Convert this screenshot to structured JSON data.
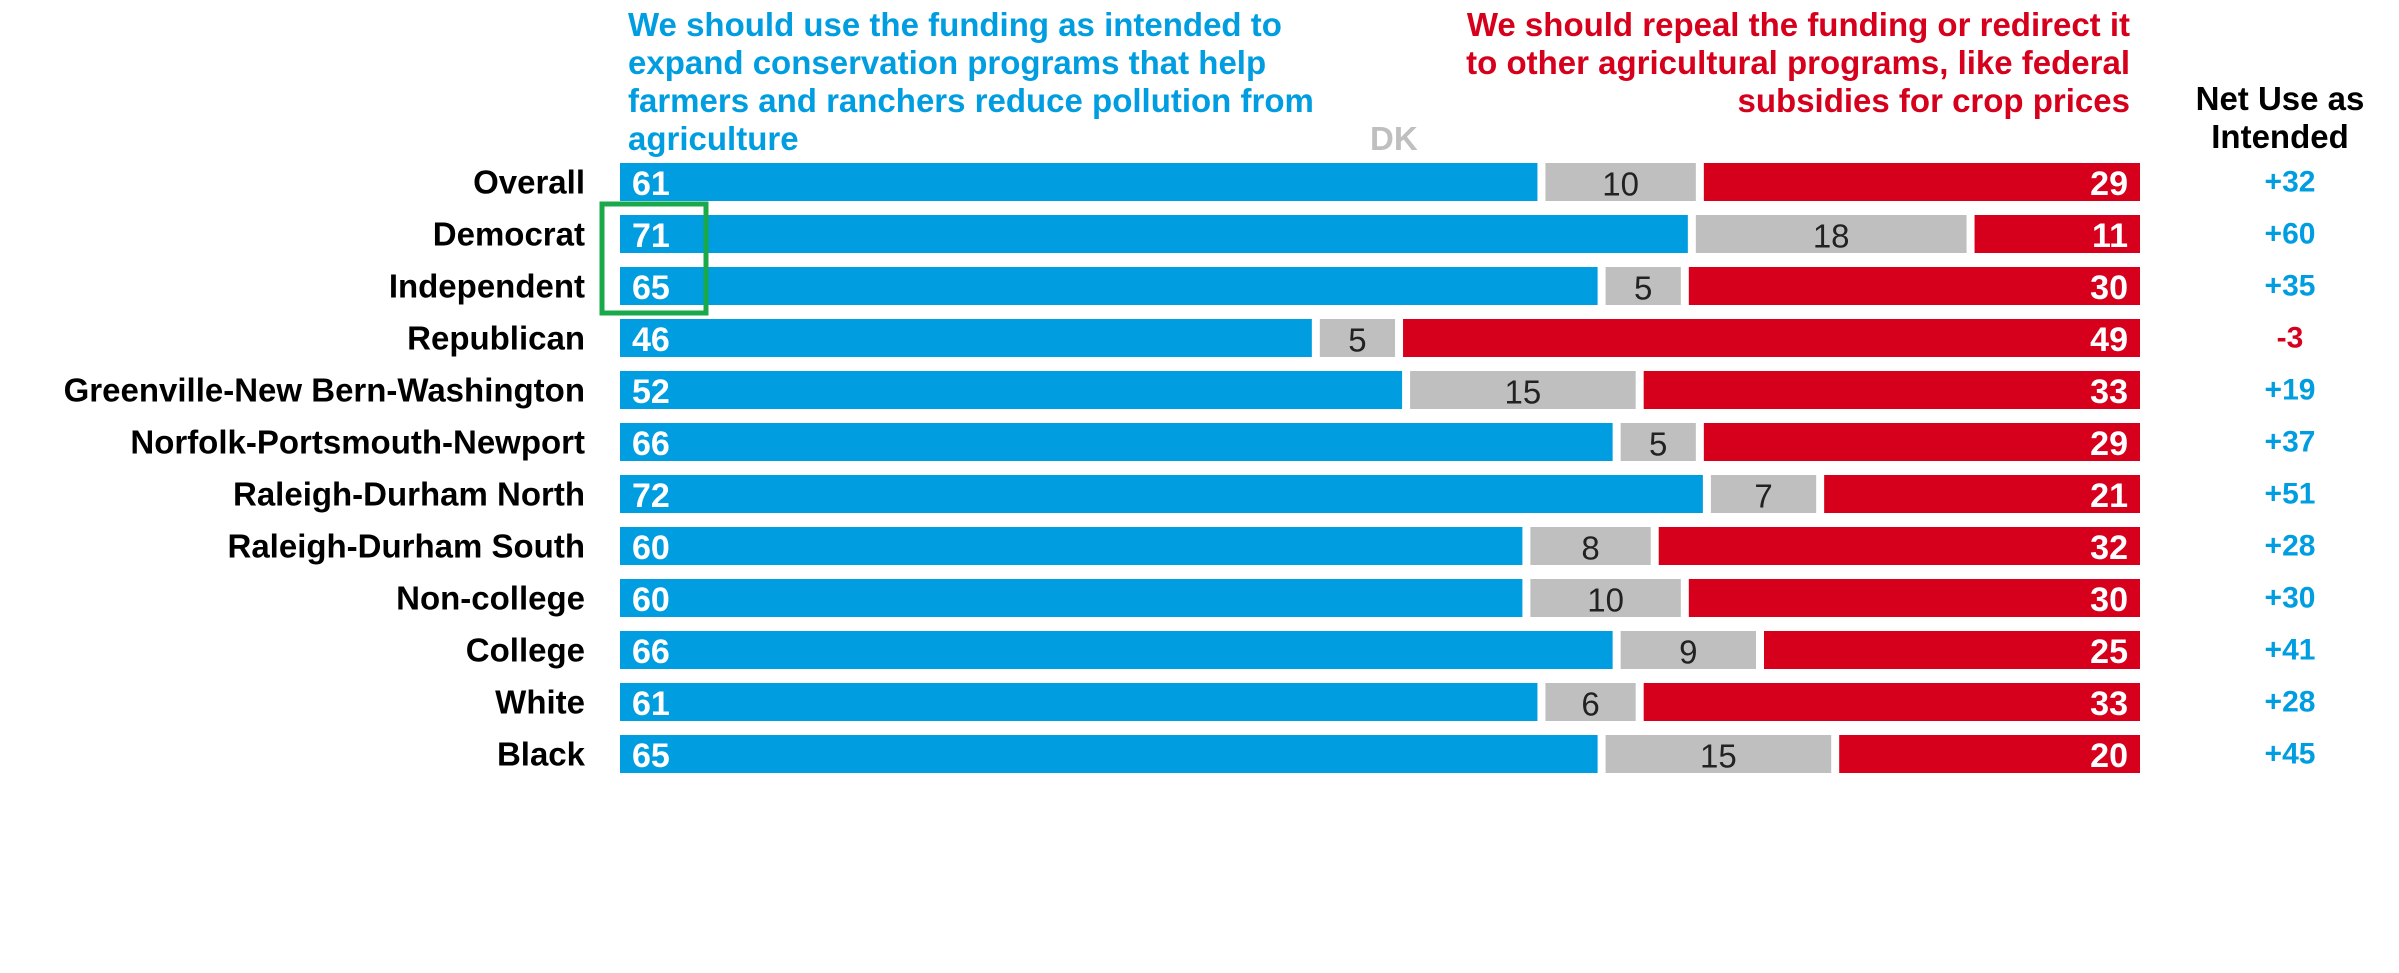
{
  "legend": {
    "use_label": "We should use the funding as intended to expand conservation programs that help farmers and ranchers reduce pollution from agriculture",
    "dk_label": "DK",
    "repeal_label": "We should repeal the funding or redirect it to other agricultural programs, like federal subsidies for crop prices",
    "net_label": "Net Use as Intended"
  },
  "colors": {
    "use": "#009ee0",
    "dk": "#bfbfbf",
    "repeal": "#d6001c",
    "highlight": "#19a84a"
  },
  "chart_data": {
    "type": "bar",
    "stacked": true,
    "orientation": "horizontal",
    "categories": [
      "Overall",
      "Democrat",
      "Independent",
      "Republican",
      "Greenville-New Bern-Washington",
      "Norfolk-Portsmouth-Newport",
      "Raleigh-Durham North",
      "Raleigh-Durham South",
      "Non-college",
      "College",
      "White",
      "Black"
    ],
    "groups": [
      [
        "Overall"
      ],
      [
        "Democrat",
        "Independent",
        "Republican"
      ],
      [
        "Greenville-New Bern-Washington",
        "Norfolk-Portsmouth-Newport",
        "Raleigh-Durham North",
        "Raleigh-Durham South"
      ],
      [
        "Non-college",
        "College"
      ],
      [
        "White",
        "Black"
      ]
    ],
    "series": [
      {
        "name": "We should use the funding as intended to expand conservation programs that help farmers and ranchers reduce pollution from agriculture",
        "values": [
          61,
          71,
          65,
          46,
          52,
          66,
          72,
          60,
          60,
          66,
          61,
          65
        ]
      },
      {
        "name": "DK",
        "values": [
          10,
          18,
          5,
          5,
          15,
          5,
          7,
          8,
          10,
          9,
          6,
          15
        ]
      },
      {
        "name": "We should repeal the funding or redirect it to other agricultural programs, like federal subsidies for crop prices",
        "values": [
          29,
          11,
          30,
          49,
          33,
          29,
          21,
          32,
          30,
          25,
          33,
          20
        ]
      }
    ],
    "net": [
      "+32",
      "+60",
      "+35",
      "-3",
      "+19",
      "+37",
      "+51",
      "+28",
      "+30",
      "+41",
      "+28",
      "+45"
    ],
    "highlight": [
      "Democrat",
      "Independent"
    ],
    "xlim": [
      0,
      100
    ]
  }
}
